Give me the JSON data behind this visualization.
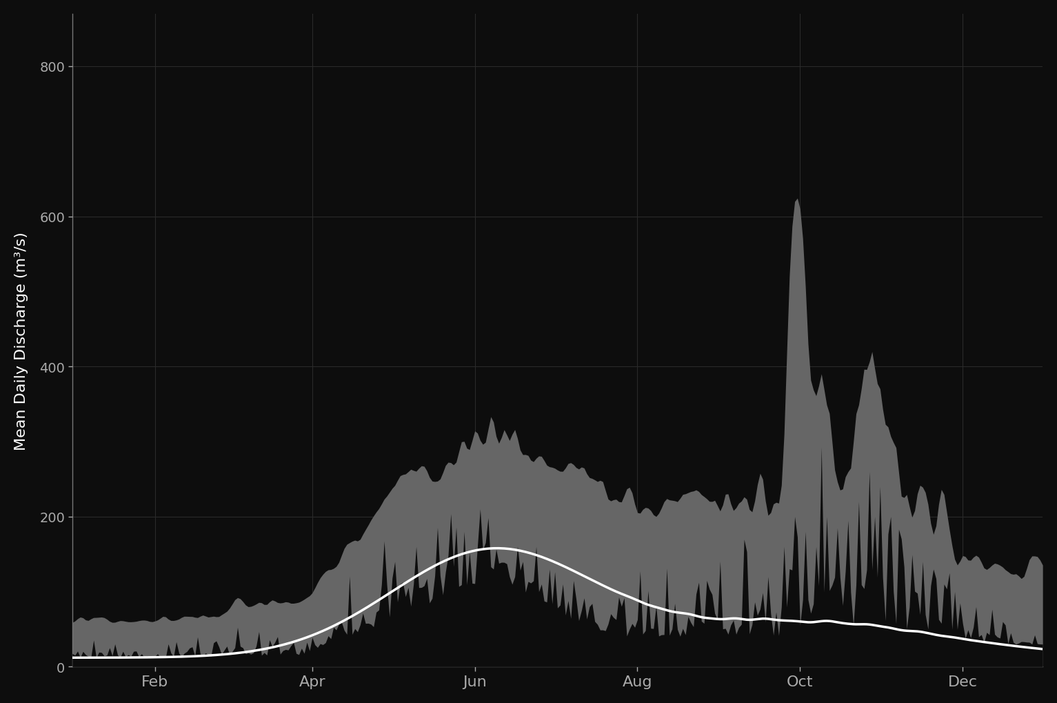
{
  "ylabel": "Mean Daily Discharge (m³/s)",
  "bg_color": "#0d0d0d",
  "axes_bg_color": "#0d0d0d",
  "fill_color_gray": "#666666",
  "line_color": "#ffffff",
  "text_color": "#aaaaaa",
  "grid_color": "#2a2a2a",
  "spine_color": "#777777",
  "ylim": [
    0,
    870
  ],
  "yticks": [
    0,
    200,
    400,
    600,
    800
  ],
  "month_labels": [
    "Feb",
    "Apr",
    "Jun",
    "Aug",
    "Oct",
    "Dec"
  ],
  "figsize": [
    15.33,
    10.2
  ],
  "dpi": 100
}
